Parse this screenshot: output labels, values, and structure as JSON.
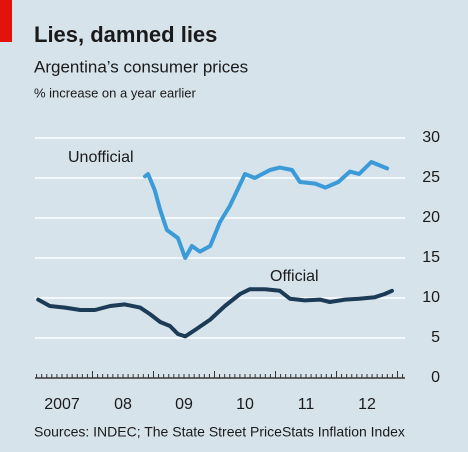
{
  "chart_data": {
    "type": "line",
    "title": "Lies, damned lies",
    "subtitle": "Argentina’s consumer prices",
    "unit_label": "% increase on a year earlier",
    "source": "Sources: INDEC; The State Street PriceStats Inflation Index",
    "annotations": [
      "Unofficial",
      "Official"
    ],
    "series": [
      {
        "name": "Unofficial",
        "color": "#3b9ad8",
        "x": [
          2008.86,
          2008.91,
          2009.02,
          2009.11,
          2009.22,
          2009.4,
          2009.52,
          2009.63,
          2009.76,
          2009.93,
          2010.09,
          2010.25,
          2010.5,
          2010.66,
          2010.91,
          2011.07,
          2011.27,
          2011.4,
          2011.65,
          2011.82,
          2012.03,
          2012.22,
          2012.37,
          2012.57,
          2012.83
        ],
        "values": [
          25.2,
          25.5,
          23.5,
          21,
          18.5,
          17.5,
          15,
          16.5,
          15.8,
          16.5,
          19.5,
          21.5,
          25.5,
          25,
          26,
          26.3,
          26,
          24.5,
          24.3,
          23.8,
          24.5,
          25.8,
          25.5,
          27,
          26.2
        ]
      },
      {
        "name": "Official",
        "color": "#1b3b57",
        "x": [
          2007.11,
          2007.3,
          2007.55,
          2007.8,
          2008.04,
          2008.29,
          2008.53,
          2008.78,
          2008.94,
          2009.11,
          2009.27,
          2009.4,
          2009.52,
          2009.68,
          2009.93,
          2010.17,
          2010.42,
          2010.58,
          2010.83,
          2011.07,
          2011.24,
          2011.48,
          2011.73,
          2011.89,
          2012.14,
          2012.37,
          2012.63,
          2012.79,
          2012.91
        ],
        "values": [
          9.8,
          9.0,
          8.8,
          8.5,
          8.5,
          9.0,
          9.2,
          8.8,
          8.0,
          7.0,
          6.5,
          5.5,
          5.2,
          6.0,
          7.3,
          9.0,
          10.5,
          11.1,
          11.1,
          10.9,
          9.9,
          9.7,
          9.8,
          9.5,
          9.8,
          9.9,
          10.1,
          10.5,
          10.9
        ]
      }
    ],
    "xlim": [
      2007,
      2013.1
    ],
    "xticks": [
      {
        "value": 2007.5,
        "label": "2007"
      },
      {
        "value": 2008.5,
        "label": "08"
      },
      {
        "value": 2009.5,
        "label": "09"
      },
      {
        "value": 2010.5,
        "label": "10"
      },
      {
        "value": 2011.5,
        "label": "11"
      },
      {
        "value": 2012.5,
        "label": "12"
      }
    ],
    "ylim": [
      0,
      30
    ],
    "yticks": [
      0,
      5,
      10,
      15,
      20,
      25,
      30
    ],
    "grid": true
  }
}
